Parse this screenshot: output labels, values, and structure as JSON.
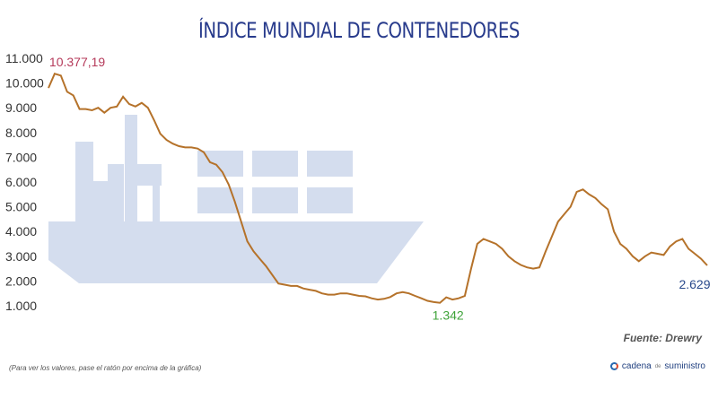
{
  "title": "ÍNDICE MUNDIAL DE CONTENEDORES",
  "colors": {
    "title": "#283b8c",
    "line": "#b5722a",
    "ship": "#d4ddee",
    "max_label": "#b53a5a",
    "min_label": "#3fa33a",
    "last_label": "#2a4a8c",
    "brand": "#1f3f7f",
    "brand_accent": "#e24a2a"
  },
  "source": "Fuente: Drewry",
  "hint": "(Para ver los valores, pase el ratón por encima de la gráfica)",
  "brand": {
    "icon": "circle-logo-icon",
    "part1": "cadena",
    "part2": "de",
    "part3": "suministro"
  },
  "chart_data": {
    "type": "line",
    "title": "ÍNDICE MUNDIAL DE CONTENEDORES",
    "xlabel": "",
    "ylabel": "",
    "ylim": [
      1000,
      11000
    ],
    "yticks": [
      11000,
      10000,
      9000,
      8000,
      7000,
      6000,
      5000,
      4000,
      3000,
      2000,
      1000
    ],
    "ytick_labels": [
      "11.000",
      "10.000",
      "9.000",
      "8.000",
      "7.000",
      "6.000",
      "5.000",
      "4.000",
      "3.000",
      "2.000",
      "1.000"
    ],
    "grid": false,
    "series": [
      {
        "values": [
          9800,
          10377,
          10300,
          9650,
          9500,
          8950,
          8950,
          8900,
          9000,
          8800,
          9000,
          9050,
          9450,
          9150,
          9050,
          9200,
          9000,
          8500,
          7950,
          7700,
          7550,
          7450,
          7400,
          7400,
          7350,
          7200,
          6800,
          6700,
          6400,
          5900,
          5200,
          4400,
          3600,
          3200,
          2900,
          2600,
          2250,
          1900,
          1850,
          1800,
          1800,
          1700,
          1650,
          1600,
          1500,
          1450,
          1450,
          1500,
          1500,
          1450,
          1400,
          1380,
          1300,
          1250,
          1280,
          1350,
          1500,
          1550,
          1500,
          1400,
          1300,
          1200,
          1150,
          1120,
          1342,
          1250,
          1300,
          1400,
          2500,
          3500,
          3700,
          3600,
          3500,
          3300,
          3000,
          2800,
          2650,
          2550,
          2500,
          2550,
          3200,
          3800,
          4400,
          4700,
          5000,
          5600,
          5700,
          5500,
          5350,
          5100,
          4900,
          4000,
          3500,
          3300,
          3000,
          2800,
          3000,
          3150,
          3100,
          3050,
          3400,
          3600,
          3700,
          3300,
          3100,
          2900,
          2629
        ]
      }
    ],
    "annotations": [
      {
        "label": "10.377,19",
        "index": 1
      },
      {
        "label": "1.342",
        "index": 64
      },
      {
        "label": "2.629",
        "index": 106
      }
    ]
  }
}
